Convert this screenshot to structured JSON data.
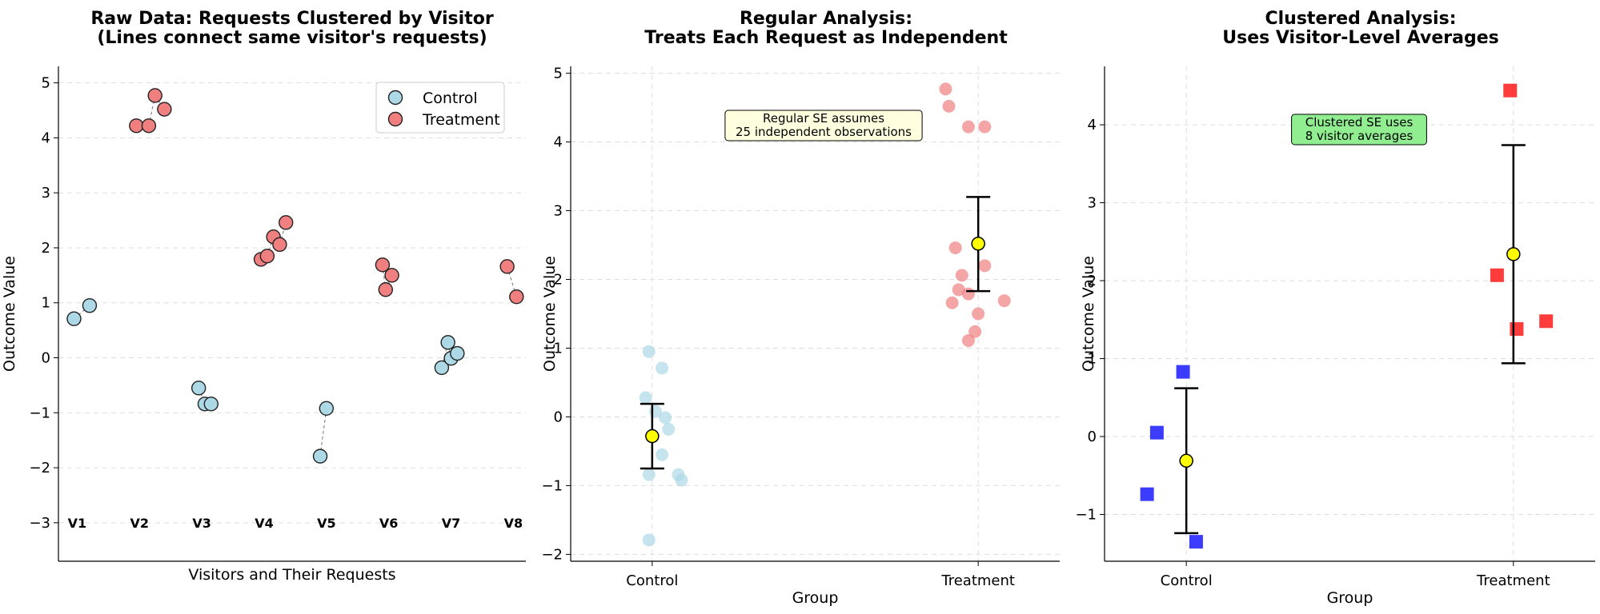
{
  "chart_data": [
    {
      "type": "scatter",
      "title": [
        "Raw Data: Requests Clustered by Visitor",
        "(Lines connect same visitor's requests)"
      ],
      "xlabel": "Visitors and Their Requests",
      "ylabel": "Outcome Value",
      "ylim": [
        -3.7,
        5.3
      ],
      "yticks": [
        -3,
        -2,
        -1,
        0,
        1,
        2,
        3,
        4,
        5
      ],
      "visitor_labels": [
        "V1",
        "V2",
        "V3",
        "V4",
        "V5",
        "V6",
        "V7",
        "V8"
      ],
      "legend": {
        "placement": "top-right",
        "entries": [
          {
            "label": "Control",
            "color": "#add8e6"
          },
          {
            "label": "Treatment",
            "color": "#f08080"
          }
        ]
      },
      "visitors": [
        {
          "label": "V1",
          "group": "Control",
          "points": [
            [
              0.95,
              0.71
            ],
            [
              1.2,
              0.95
            ]
          ]
        },
        {
          "label": "V2",
          "group": "Treatment",
          "points": [
            [
              1.95,
              4.22
            ],
            [
              2.15,
              4.22
            ],
            [
              2.25,
              4.77
            ],
            [
              2.4,
              4.52
            ]
          ]
        },
        {
          "label": "V3",
          "group": "Control",
          "points": [
            [
              2.95,
              -0.55
            ],
            [
              3.05,
              -0.84
            ],
            [
              3.15,
              -0.84
            ]
          ]
        },
        {
          "label": "V4",
          "group": "Treatment",
          "points": [
            [
              3.95,
              1.79
            ],
            [
              4.05,
              1.85
            ],
            [
              4.15,
              2.2
            ],
            [
              4.25,
              2.06
            ],
            [
              4.35,
              2.46
            ]
          ]
        },
        {
          "label": "V5",
          "group": "Control",
          "points": [
            [
              4.9,
              -1.79
            ],
            [
              5.0,
              -0.92
            ]
          ]
        },
        {
          "label": "V6",
          "group": "Treatment",
          "points": [
            [
              5.9,
              1.69
            ],
            [
              5.95,
              1.24
            ],
            [
              6.05,
              1.5
            ]
          ]
        },
        {
          "label": "V7",
          "group": "Control",
          "points": [
            [
              6.85,
              -0.18
            ],
            [
              6.95,
              0.28
            ],
            [
              7.0,
              -0.01
            ],
            [
              7.1,
              0.08
            ]
          ]
        },
        {
          "label": "V8",
          "group": "Treatment",
          "points": [
            [
              7.9,
              1.66
            ],
            [
              8.05,
              1.11
            ]
          ]
        }
      ]
    },
    {
      "type": "scatter",
      "title": [
        "Regular Analysis:",
        "Treats Each Request as Independent"
      ],
      "xlabel": "Group",
      "ylabel": "Outcome Value",
      "ylim": [
        -2.1,
        5.1
      ],
      "yticks": [
        -2,
        -1,
        0,
        1,
        2,
        3,
        4,
        5
      ],
      "categories": [
        "Control",
        "Treatment"
      ],
      "points": {
        "Control": [
          [
            -0.01,
            0.95
          ],
          [
            0.03,
            0.71
          ],
          [
            -0.02,
            0.28
          ],
          [
            0.01,
            0.08
          ],
          [
            0.04,
            -0.01
          ],
          [
            0.05,
            -0.18
          ],
          [
            0.03,
            -0.55
          ],
          [
            0.08,
            -0.84
          ],
          [
            0.09,
            -0.92
          ],
          [
            -0.01,
            -0.84
          ],
          [
            -0.01,
            -1.79
          ]
        ],
        "Treatment": [
          [
            -0.1,
            4.77
          ],
          [
            -0.09,
            4.52
          ],
          [
            -0.03,
            4.22
          ],
          [
            0.02,
            4.22
          ],
          [
            -0.07,
            2.46
          ],
          [
            0.02,
            2.2
          ],
          [
            -0.05,
            2.06
          ],
          [
            -0.06,
            1.85
          ],
          [
            -0.03,
            1.79
          ],
          [
            -0.08,
            1.66
          ],
          [
            0.08,
            1.69
          ],
          [
            0.0,
            1.5
          ],
          [
            -0.01,
            1.24
          ],
          [
            -0.03,
            1.11
          ]
        ]
      },
      "means": [
        -0.28,
        2.52
      ],
      "error_bars": [
        [
          -0.75,
          0.19
        ],
        [
          1.83,
          3.2
        ]
      ],
      "annotation": [
        "Regular SE assumes",
        "25 independent observations"
      ]
    },
    {
      "type": "scatter",
      "title": [
        "Clustered Analysis:",
        "Uses Visitor-Level Averages"
      ],
      "xlabel": "Group",
      "ylabel": "Outcome Value",
      "ylim": [
        -1.6,
        4.75
      ],
      "yticks": [
        -1,
        0,
        1,
        2,
        3,
        4
      ],
      "categories": [
        "Control",
        "Treatment"
      ],
      "points": {
        "Control": [
          [
            -0.01,
            0.83
          ],
          [
            -0.09,
            0.05
          ],
          [
            -0.12,
            -0.74
          ],
          [
            0.03,
            -1.35
          ]
        ],
        "Treatment": [
          [
            -0.01,
            4.44
          ],
          [
            -0.05,
            2.07
          ],
          [
            0.01,
            1.38
          ],
          [
            0.1,
            1.48
          ]
        ]
      },
      "means": [
        -0.31,
        2.34
      ],
      "error_bars": [
        [
          -1.24,
          0.62
        ],
        [
          0.94,
          3.74
        ]
      ],
      "annotation": [
        "Clustered SE uses",
        "8 visitor averages"
      ]
    }
  ],
  "colors": {
    "control_light": "#add8e6",
    "treatment_light": "#f08080",
    "control_dark": "#1a1aff",
    "treatment_dark": "#ff1a1a",
    "mean_fill": "#ffff00",
    "note_yellow": "#ffffe0",
    "note_green": "#90ee90"
  }
}
